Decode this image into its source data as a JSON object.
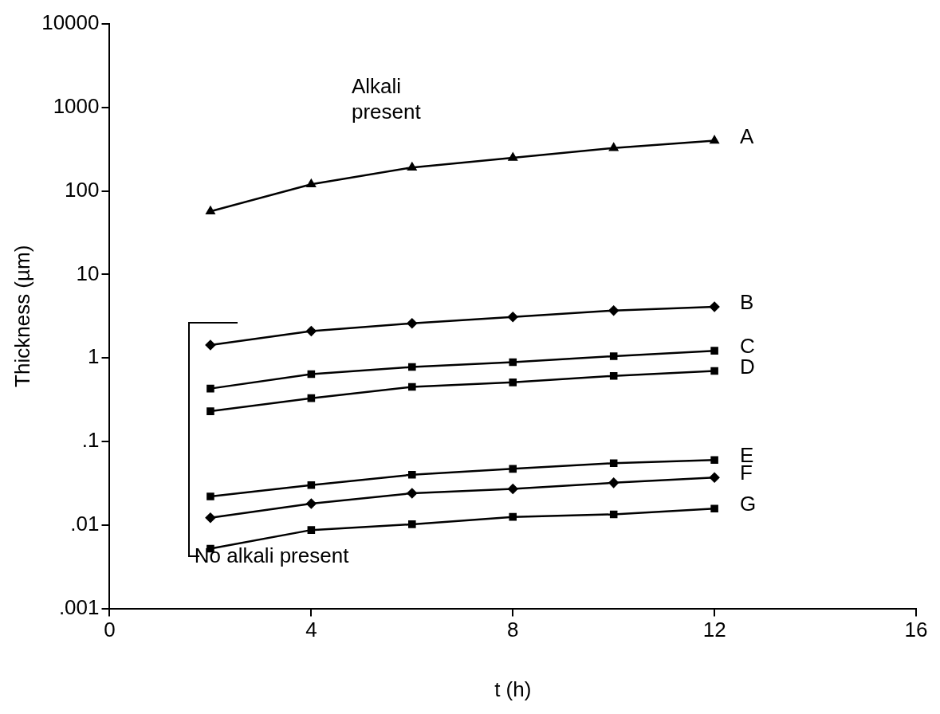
{
  "chart_data": {
    "type": "line",
    "xlabel": "t (h)",
    "ylabel": "Thickness (µm)",
    "log": "y",
    "legend": false,
    "grid": false,
    "x": [
      2,
      4,
      6,
      8,
      10,
      12
    ],
    "xlim": [
      0,
      16
    ],
    "xticks": [
      0,
      4,
      8,
      12,
      16
    ],
    "ylim": [
      0.001,
      10000
    ],
    "yticks": [
      {
        "value": 0.001,
        "label": ".001"
      },
      {
        "value": 0.01,
        "label": ".01"
      },
      {
        "value": 0.1,
        "label": ".1"
      },
      1,
      10,
      100,
      1000,
      10000
    ],
    "annotations": [
      "Alkali present",
      "No alkali present"
    ],
    "series": [
      {
        "name": "A",
        "color": "#000000",
        "marker": "triangle",
        "values": [
          57,
          120,
          191,
          250,
          327,
          400
        ]
      },
      {
        "name": "B",
        "color": "#000000",
        "marker": "diamond",
        "values": [
          1.43,
          2.1,
          2.6,
          3.1,
          3.7,
          4.1
        ]
      },
      {
        "name": "C",
        "color": "#000000",
        "marker": "square",
        "values": [
          0.43,
          0.64,
          0.78,
          0.89,
          1.05,
          1.22
        ]
      },
      {
        "name": "D",
        "color": "#000000",
        "marker": "square",
        "values": [
          0.23,
          0.33,
          0.45,
          0.51,
          0.61,
          0.7
        ]
      },
      {
        "name": "E",
        "color": "#000000",
        "marker": "square",
        "values": [
          0.022,
          0.03,
          0.04,
          0.047,
          0.055,
          0.06
        ]
      },
      {
        "name": "F",
        "color": "#000000",
        "marker": "diamond",
        "values": [
          0.0122,
          0.018,
          0.024,
          0.027,
          0.032,
          0.037
        ]
      },
      {
        "name": "G",
        "color": "#000000",
        "marker": "square",
        "values": [
          0.0052,
          0.0087,
          0.0102,
          0.0125,
          0.0134,
          0.0157
        ]
      }
    ]
  }
}
